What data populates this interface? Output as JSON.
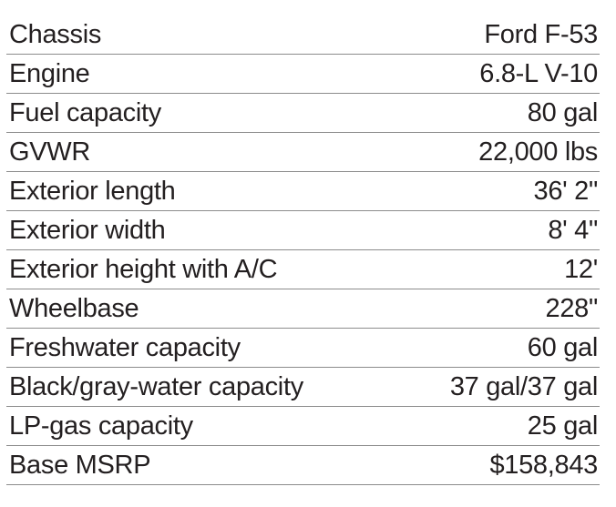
{
  "specs": [
    {
      "label": "Chassis",
      "value": "Ford F-53"
    },
    {
      "label": "Engine",
      "value": "6.8-L V-10"
    },
    {
      "label": "Fuel capacity",
      "value": "80 gal"
    },
    {
      "label": "GVWR",
      "value": "22,000 lbs"
    },
    {
      "label": "Exterior length",
      "value": "36' 2\""
    },
    {
      "label": "Exterior width",
      "value": "8' 4\""
    },
    {
      "label": "Exterior height with A/C",
      "value": "12'"
    },
    {
      "label": "Wheelbase",
      "value": "228\""
    },
    {
      "label": "Freshwater capacity",
      "value": "60 gal"
    },
    {
      "label": "Black/gray-water capacity",
      "value": "37 gal/37 gal"
    },
    {
      "label": "LP-gas capacity",
      "value": "25 gal"
    },
    {
      "label": "Base MSRP",
      "value": "$158,843"
    }
  ]
}
